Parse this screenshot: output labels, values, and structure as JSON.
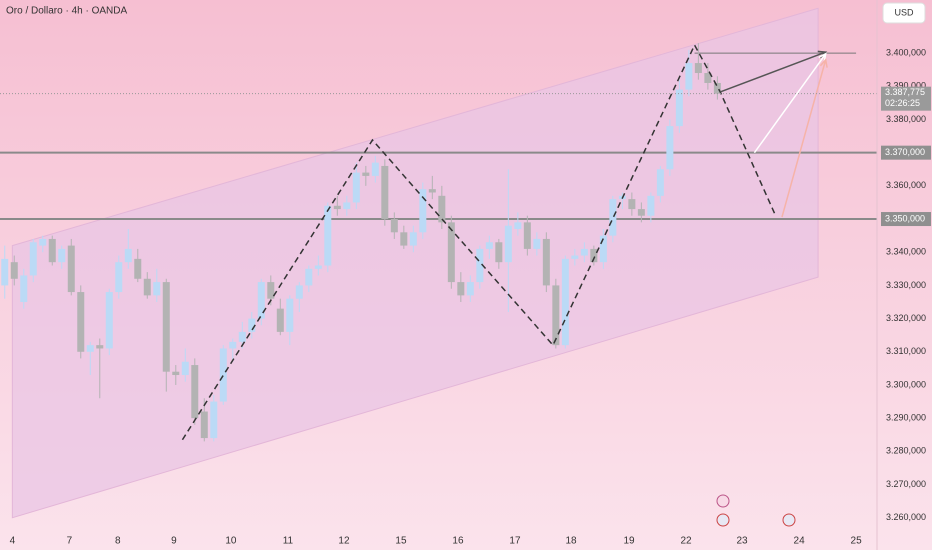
{
  "chart_data": {
    "type": "candlestick",
    "title": "Oro / Dollaro · 4h · OANDA",
    "currency": "USD",
    "up_color": "#bbdaf6",
    "down_color": "#b3b3b3",
    "x": [
      0,
      1,
      2,
      3,
      4,
      5,
      6,
      7,
      8,
      9,
      10,
      11,
      12,
      13,
      14,
      15,
      16,
      17,
      18,
      19,
      20,
      21,
      22,
      23,
      24,
      25,
      26,
      27,
      28,
      29,
      30,
      31,
      32,
      33,
      34,
      35,
      36,
      37,
      38,
      39,
      40,
      41,
      42,
      43,
      44,
      45,
      46,
      47,
      48,
      49,
      50,
      51,
      52,
      53,
      54,
      55,
      56,
      57,
      58,
      59,
      60,
      61,
      62,
      63,
      64,
      65,
      66,
      67,
      68,
      69,
      70,
      71,
      72,
      73,
      74,
      75
    ],
    "open": [
      3330000,
      3337000,
      3325000,
      3333000,
      3342000,
      3344000,
      3337000,
      3342000,
      3328000,
      3310000,
      3312000,
      3311000,
      3328000,
      3337000,
      3338000,
      3332000,
      3327000,
      3331000,
      3304000,
      3303000,
      3306000,
      3292000,
      3284000,
      3295000,
      3311000,
      3313000,
      3316000,
      3320000,
      3331000,
      3323000,
      3316000,
      3326000,
      3330000,
      3335000,
      3336000,
      3354000,
      3353000,
      3355000,
      3364000,
      3363000,
      3366000,
      3350000,
      3346000,
      3342000,
      3346000,
      3359000,
      3357000,
      3349000,
      3331000,
      3327000,
      3331000,
      3341000,
      3343000,
      3337000,
      3347000,
      3349000,
      3341000,
      3344000,
      3330000,
      3312000,
      3338000,
      3339000,
      3341000,
      3337000,
      3345000,
      3356000,
      3356000,
      3353000,
      3351000,
      3357000,
      3365000,
      3378000,
      3389000,
      3397000,
      3394000,
      3391000
    ],
    "high": [
      3342000,
      3339000,
      3335000,
      3344000,
      3345000,
      3345000,
      3342000,
      3344000,
      3330000,
      3313000,
      3314000,
      3329000,
      3339000,
      3347000,
      3341000,
      3334000,
      3335000,
      3332000,
      3306000,
      3311000,
      3308000,
      3296000,
      3297000,
      3312000,
      3314000,
      3319000,
      3322000,
      3332000,
      3333000,
      3326000,
      3327000,
      3331000,
      3336000,
      3339000,
      3355000,
      3357000,
      3357000,
      3367000,
      3366000,
      3369000,
      3368000,
      3352000,
      3348000,
      3348000,
      3361000,
      3363000,
      3360000,
      3351000,
      3334000,
      3333000,
      3342000,
      3345000,
      3344000,
      3365000,
      3352000,
      3351000,
      3346000,
      3346000,
      3332000,
      3339000,
      3341000,
      3343000,
      3342000,
      3347000,
      3357000,
      3358000,
      3358000,
      3355000,
      3358000,
      3366000,
      3380000,
      3392000,
      3401000,
      3403000,
      3397000,
      3393000
    ],
    "low": [
      3326000,
      3330000,
      3323000,
      3331000,
      3340000,
      3336000,
      3335000,
      3327000,
      3308000,
      3303000,
      3296000,
      3309000,
      3326000,
      3335000,
      3331000,
      3326000,
      3325000,
      3298000,
      3300000,
      3301000,
      3288000,
      3283000,
      3283000,
      3294000,
      3307000,
      3311000,
      3314000,
      3318000,
      3324000,
      3315000,
      3312000,
      3322000,
      3328000,
      3333000,
      3334000,
      3351000,
      3351000,
      3353000,
      3360000,
      3361000,
      3348000,
      3344000,
      3341000,
      3340000,
      3344000,
      3356000,
      3347000,
      3329000,
      3325000,
      3325000,
      3329000,
      3338000,
      3335000,
      3322000,
      3345000,
      3339000,
      3339000,
      3328000,
      3311000,
      3311000,
      3336000,
      3337000,
      3336000,
      3335000,
      3343000,
      3353000,
      3351000,
      3349000,
      3349000,
      3355000,
      3363000,
      3376000,
      3387000,
      3392000,
      3389000,
      3386000
    ],
    "close": [
      3338000,
      3332000,
      3333000,
      3343000,
      3344000,
      3337000,
      3341000,
      3328000,
      3310000,
      3312000,
      3311000,
      3328000,
      3337000,
      3341000,
      3332000,
      3327000,
      3331000,
      3304000,
      3303000,
      3307000,
      3290000,
      3284000,
      3295000,
      3311000,
      3313000,
      3316000,
      3320000,
      3331000,
      3326000,
      3316000,
      3326000,
      3330000,
      3335000,
      3336000,
      3354000,
      3353000,
      3355000,
      3364000,
      3363000,
      3367000,
      3350000,
      3346000,
      3342000,
      3346000,
      3359000,
      3358000,
      3349000,
      3331000,
      3327000,
      3331000,
      3341000,
      3343000,
      3337000,
      3348000,
      3349000,
      3341000,
      3344000,
      3330000,
      3312000,
      3338000,
      3339000,
      3341000,
      3337000,
      3345000,
      3356000,
      3357000,
      3353000,
      3351000,
      3357000,
      3365000,
      3378000,
      3389000,
      3397000,
      3394000,
      3391000,
      3387775
    ],
    "xlim": [
      -0.5,
      91.8
    ],
    "ylim": [
      3256000,
      3416000
    ],
    "xticks": [
      {
        "value": 0.8,
        "label": "4"
      },
      {
        "value": 6.8,
        "label": "7"
      },
      {
        "value": 11.9,
        "label": "8"
      },
      {
        "value": 17.8,
        "label": "9"
      },
      {
        "value": 23.8,
        "label": "10"
      },
      {
        "value": 29.8,
        "label": "11"
      },
      {
        "value": 35.7,
        "label": "12"
      },
      {
        "value": 41.7,
        "label": "15"
      },
      {
        "value": 47.7,
        "label": "16"
      },
      {
        "value": 53.7,
        "label": "17"
      },
      {
        "value": 59.6,
        "label": "18"
      },
      {
        "value": 65.7,
        "label": "19"
      },
      {
        "value": 71.7,
        "label": "22"
      },
      {
        "value": 77.6,
        "label": "23"
      },
      {
        "value": 83.6,
        "label": "24"
      },
      {
        "value": 89.6,
        "label": "25"
      }
    ],
    "yticks": [
      {
        "value": 3260000,
        "label": "3.260,000"
      },
      {
        "value": 3270000,
        "label": "3.270,000"
      },
      {
        "value": 3280000,
        "label": "3.280,000"
      },
      {
        "value": 3290000,
        "label": "3.290,000"
      },
      {
        "value": 3300000,
        "label": "3.300,000"
      },
      {
        "value": 3310000,
        "label": "3.310,000"
      },
      {
        "value": 3320000,
        "label": "3.320,000"
      },
      {
        "value": 3330000,
        "label": "3.330,000"
      },
      {
        "value": 3340000,
        "label": "3.340,000"
      },
      {
        "value": 3360000,
        "label": "3.360,000"
      },
      {
        "value": 3380000,
        "label": "3.380,000"
      },
      {
        "value": 3390000,
        "label": "3.390,000"
      },
      {
        "value": 3400000,
        "label": "3.400,000"
      }
    ],
    "hlines": [
      {
        "value": 3370000,
        "label": "3.370,000"
      },
      {
        "value": 3350000,
        "label": "3.350,000"
      }
    ],
    "price_marker": {
      "value": 3387775,
      "label": "3.387,775",
      "countdown": "02:26:25"
    },
    "channel": {
      "x": [
        0.8,
        85.6
      ],
      "upper": [
        3342000,
        3413500
      ],
      "lower": [
        3260000,
        3332500
      ],
      "color": "#eac6e4"
    },
    "target_line": {
      "x": [
        72.6,
        89.6
      ],
      "y": 3400000
    },
    "zigzag": {
      "x": [
        18.7,
        38.7,
        57.7,
        72.6,
        75.3,
        81.1
      ],
      "y": [
        3283500,
        3373800,
        3312000,
        3402400,
        3388300,
        3351200
      ]
    },
    "arrows": [
      {
        "x": [
          75.3,
          86.4
        ],
        "y": [
          3388300,
          3400300
        ],
        "color": "#555555"
      },
      {
        "x": [
          78.9,
          86.4
        ],
        "y": [
          3370000,
          3399800
        ],
        "color": "#ffffff"
      },
      {
        "x": [
          81.8,
          86.4
        ],
        "y": [
          3350600,
          3398000
        ],
        "color": "#f6b3a8"
      }
    ]
  }
}
